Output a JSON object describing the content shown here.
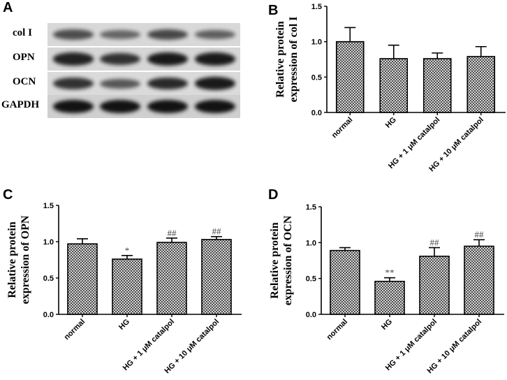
{
  "panel_a": {
    "letter": "A",
    "blots": [
      {
        "label": "col I",
        "bg": "#d8d8d8",
        "bands": [
          {
            "i": 0.55
          },
          {
            "i": 0.4
          },
          {
            "i": 0.6
          },
          {
            "i": 0.45
          }
        ]
      },
      {
        "label": "OPN",
        "bg": "#d6d6d6",
        "bands": [
          {
            "i": 0.85
          },
          {
            "i": 0.75
          },
          {
            "i": 0.9
          },
          {
            "i": 0.9
          }
        ]
      },
      {
        "label": "OCN",
        "bg": "#dadada",
        "bands": [
          {
            "i": 0.75
          },
          {
            "i": 0.5
          },
          {
            "i": 0.8
          },
          {
            "i": 0.9
          }
        ]
      },
      {
        "label": "GAPDH",
        "bg": "#cfcfcf",
        "bands": [
          {
            "i": 0.95
          },
          {
            "i": 0.95
          },
          {
            "i": 0.95
          },
          {
            "i": 0.95
          }
        ]
      }
    ]
  },
  "chart_data": [
    {
      "panel": "B",
      "type": "bar",
      "categories": [
        "normal",
        "HG",
        "HG + 1 μM catalpol",
        "HG + 10 μM catalpol"
      ],
      "values": [
        1.0,
        0.76,
        0.76,
        0.79
      ],
      "errors": [
        0.2,
        0.19,
        0.08,
        0.14
      ],
      "annotations": [
        "",
        "",
        "",
        ""
      ],
      "ylabel_line1": "Relative protein",
      "ylabel_line2": "expression of col I",
      "ylim": [
        0,
        1.5
      ],
      "yticks": [
        "0.0",
        "0.5",
        "1.0",
        "1.5"
      ]
    },
    {
      "panel": "C",
      "type": "bar",
      "categories": [
        "normal",
        "HG",
        "HG + 1 μM catalpol",
        "HG + 10 μM catalpol"
      ],
      "values": [
        0.97,
        0.76,
        0.99,
        1.03
      ],
      "errors": [
        0.07,
        0.05,
        0.06,
        0.04
      ],
      "annotations": [
        "",
        "*",
        "##",
        "##"
      ],
      "ylabel_line1": "Relative protein",
      "ylabel_line2": "expression of OPN",
      "ylim": [
        0,
        1.5
      ],
      "yticks": [
        "0.0",
        "0.5",
        "1.0",
        "1.5"
      ]
    },
    {
      "panel": "D",
      "type": "bar",
      "categories": [
        "normal",
        "HG",
        "HG + 1 μM catalpol",
        "HG + 10 μM catalpol"
      ],
      "values": [
        0.89,
        0.46,
        0.81,
        0.95
      ],
      "errors": [
        0.04,
        0.05,
        0.12,
        0.09
      ],
      "annotations": [
        "",
        "**",
        "##",
        "##"
      ],
      "ylabel_line1": "Relative protein",
      "ylabel_line2": "expression of OCN",
      "ylim": [
        0,
        1.5
      ],
      "yticks": [
        "0.0",
        "0.5",
        "1.0",
        "1.5"
      ]
    }
  ]
}
